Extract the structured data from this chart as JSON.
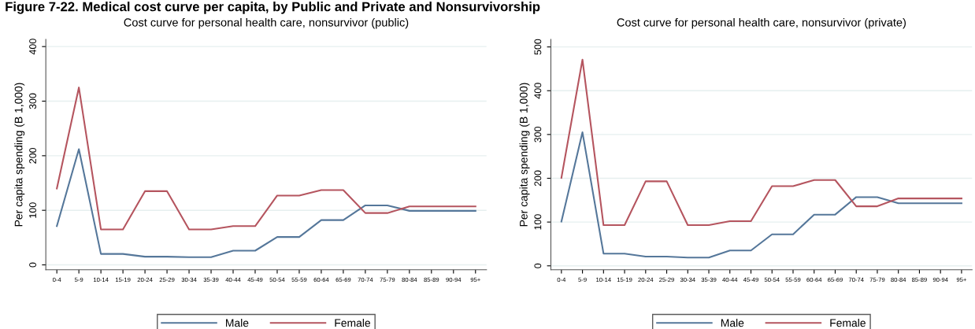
{
  "chart_data": [
    {
      "type": "line",
      "title": "Cost curve for personal health care, nonsurvivor (public)",
      "ylabel": "Per capita spending (B 1,000)",
      "annotations": [
        "Figure 7-22. Medical cost curve per capita, by Public and Private and Nonsurvivorship"
      ],
      "categories": [
        "0-4",
        "5-9",
        "10-14",
        "15-19",
        "20-24",
        "25-29",
        "30-34",
        "35-39",
        "40-44",
        "45-49",
        "50-54",
        "55-59",
        "60-64",
        "65-69",
        "70-74",
        "75-79",
        "80-84",
        "85-89",
        "90-94",
        "95+"
      ],
      "series": [
        {
          "name": "Male",
          "color": "#55779a",
          "values": [
            71,
            212,
            20,
            20,
            15,
            15,
            14,
            14,
            26,
            26,
            51,
            51,
            82,
            82,
            109,
            109,
            99,
            99,
            99,
            99
          ]
        },
        {
          "name": "Female",
          "color": "#b5555f",
          "values": [
            140,
            325,
            65,
            65,
            135,
            135,
            65,
            65,
            71,
            71,
            127,
            127,
            137,
            137,
            95,
            95,
            107,
            107,
            107,
            107
          ]
        }
      ],
      "ylim": [
        -9,
        413
      ],
      "yticks": [
        0,
        100,
        200,
        300,
        400
      ],
      "grid": "y",
      "legend": "bottom",
      "marker": "none",
      "line_style": "solid"
    },
    {
      "type": "line",
      "title": "Cost curve for personal health care, nonsurvivor (private)",
      "ylabel": "Per capita spending (B 1,000)",
      "categories": [
        "0-4",
        "5-9",
        "10-14",
        "15-19",
        "20-24",
        "25-29",
        "30-34",
        "35-39",
        "40-44",
        "45-49",
        "50-54",
        "55-59",
        "60-64",
        "65-69",
        "70-74",
        "75-79",
        "80-84",
        "85-89",
        "90-94",
        "95+"
      ],
      "series": [
        {
          "name": "Male",
          "color": "#55779a",
          "values": [
            101,
            305,
            28,
            28,
            21,
            21,
            19,
            19,
            35,
            35,
            72,
            72,
            117,
            117,
            157,
            157,
            143,
            143,
            143,
            143
          ]
        },
        {
          "name": "Female",
          "color": "#b5555f",
          "values": [
            201,
            471,
            93,
            93,
            193,
            193,
            93,
            93,
            102,
            102,
            182,
            182,
            196,
            196,
            136,
            136,
            154,
            154,
            154,
            154
          ]
        }
      ],
      "ylim": [
        -9,
        517
      ],
      "yticks": [
        0,
        100,
        200,
        300,
        400,
        500
      ],
      "grid": "y",
      "legend": "bottom",
      "marker": "none",
      "line_style": "solid"
    }
  ]
}
